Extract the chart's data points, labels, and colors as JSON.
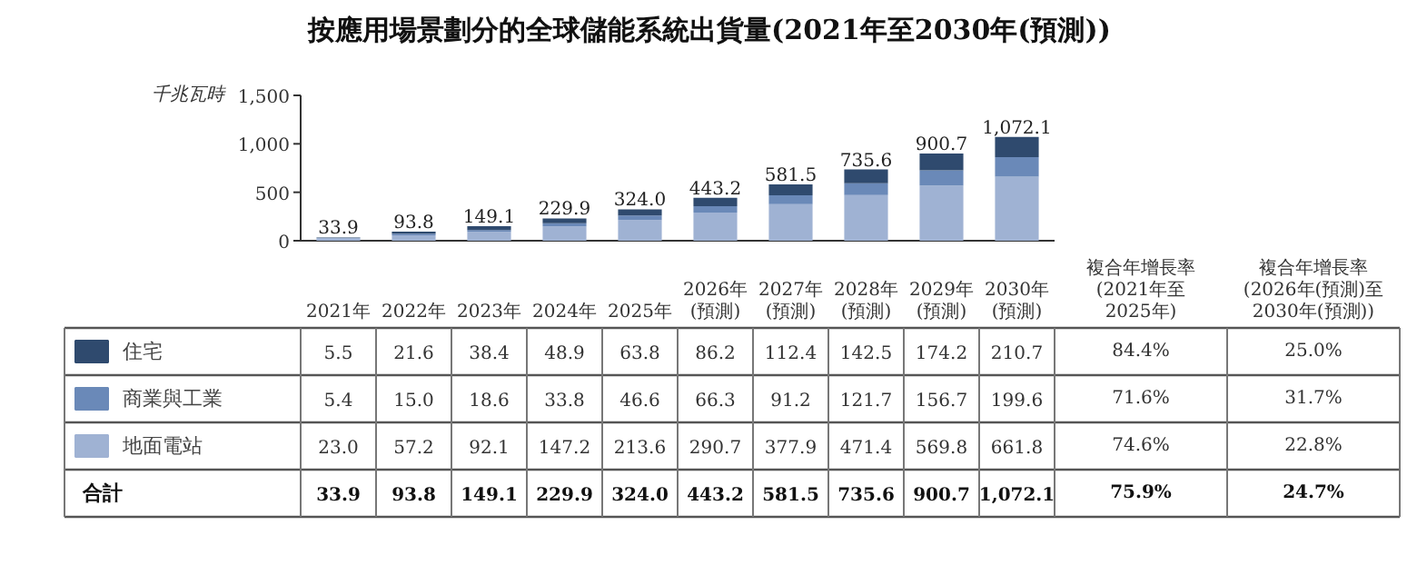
{
  "chart_data": {
    "type": "bar",
    "stacked": true,
    "title": "按應用場景劃分的全球儲能系統出貨量(2021年至2030年(預測))",
    "ylabel": "千兆瓦時",
    "categories": [
      "2021年",
      "2022年",
      "2023年",
      "2024年",
      "2025年",
      "2026年\n(預測)",
      "2027年\n(預測)",
      "2028年\n(預測)",
      "2029年\n(預測)",
      "2030年\n(預測)"
    ],
    "series": [
      {
        "name": "地面電站",
        "color": "#9fb2d3",
        "values": [
          23.0,
          57.2,
          92.1,
          147.2,
          213.6,
          290.7,
          377.9,
          471.4,
          569.8,
          661.8
        ],
        "value_labels": [
          "23.0",
          "57.2",
          "92.1",
          "147.2",
          "213.6",
          "290.7",
          "377.9",
          "471.4",
          "569.8",
          "661.8"
        ]
      },
      {
        "name": "商業與工業",
        "color": "#6a89b8",
        "values": [
          5.4,
          15.0,
          18.6,
          33.8,
          46.6,
          66.3,
          91.2,
          121.7,
          156.7,
          199.6
        ],
        "value_labels": [
          "5.4",
          "15.0",
          "18.6",
          "33.8",
          "46.6",
          "66.3",
          "91.2",
          "121.7",
          "156.7",
          "199.6"
        ]
      },
      {
        "name": "住宅",
        "color": "#2f4a6e",
        "values": [
          5.5,
          21.6,
          38.4,
          48.9,
          63.8,
          86.2,
          112.4,
          142.5,
          174.2,
          210.7
        ],
        "value_labels": [
          "5.5",
          "21.6",
          "38.4",
          "48.9",
          "63.8",
          "86.2",
          "112.4",
          "142.5",
          "174.2",
          "210.7"
        ]
      }
    ],
    "totals": [
      "33.9",
      "93.8",
      "149.1",
      "229.9",
      "324.0",
      "443.2",
      "581.5",
      "735.6",
      "900.7",
      "1,072.1"
    ],
    "ylim": [
      0,
      1500
    ],
    "yticks": [
      0,
      {
        "value": 500,
        "label": "500"
      },
      {
        "value": 1000,
        "label": "1,000"
      },
      {
        "value": 1500,
        "label": "1,500"
      }
    ],
    "grid": false,
    "legend": "bottom",
    "annotations": [
      "合計",
      "複合年增長率\n(2021年至\n2025年)",
      "複合年增長率\n(2026年(預測)至\n2030年(預測))",
      "84.4%",
      "25.0%",
      "71.6%",
      "31.7%",
      "74.6%",
      "22.8%",
      "75.9%",
      "24.7%"
    ]
  }
}
